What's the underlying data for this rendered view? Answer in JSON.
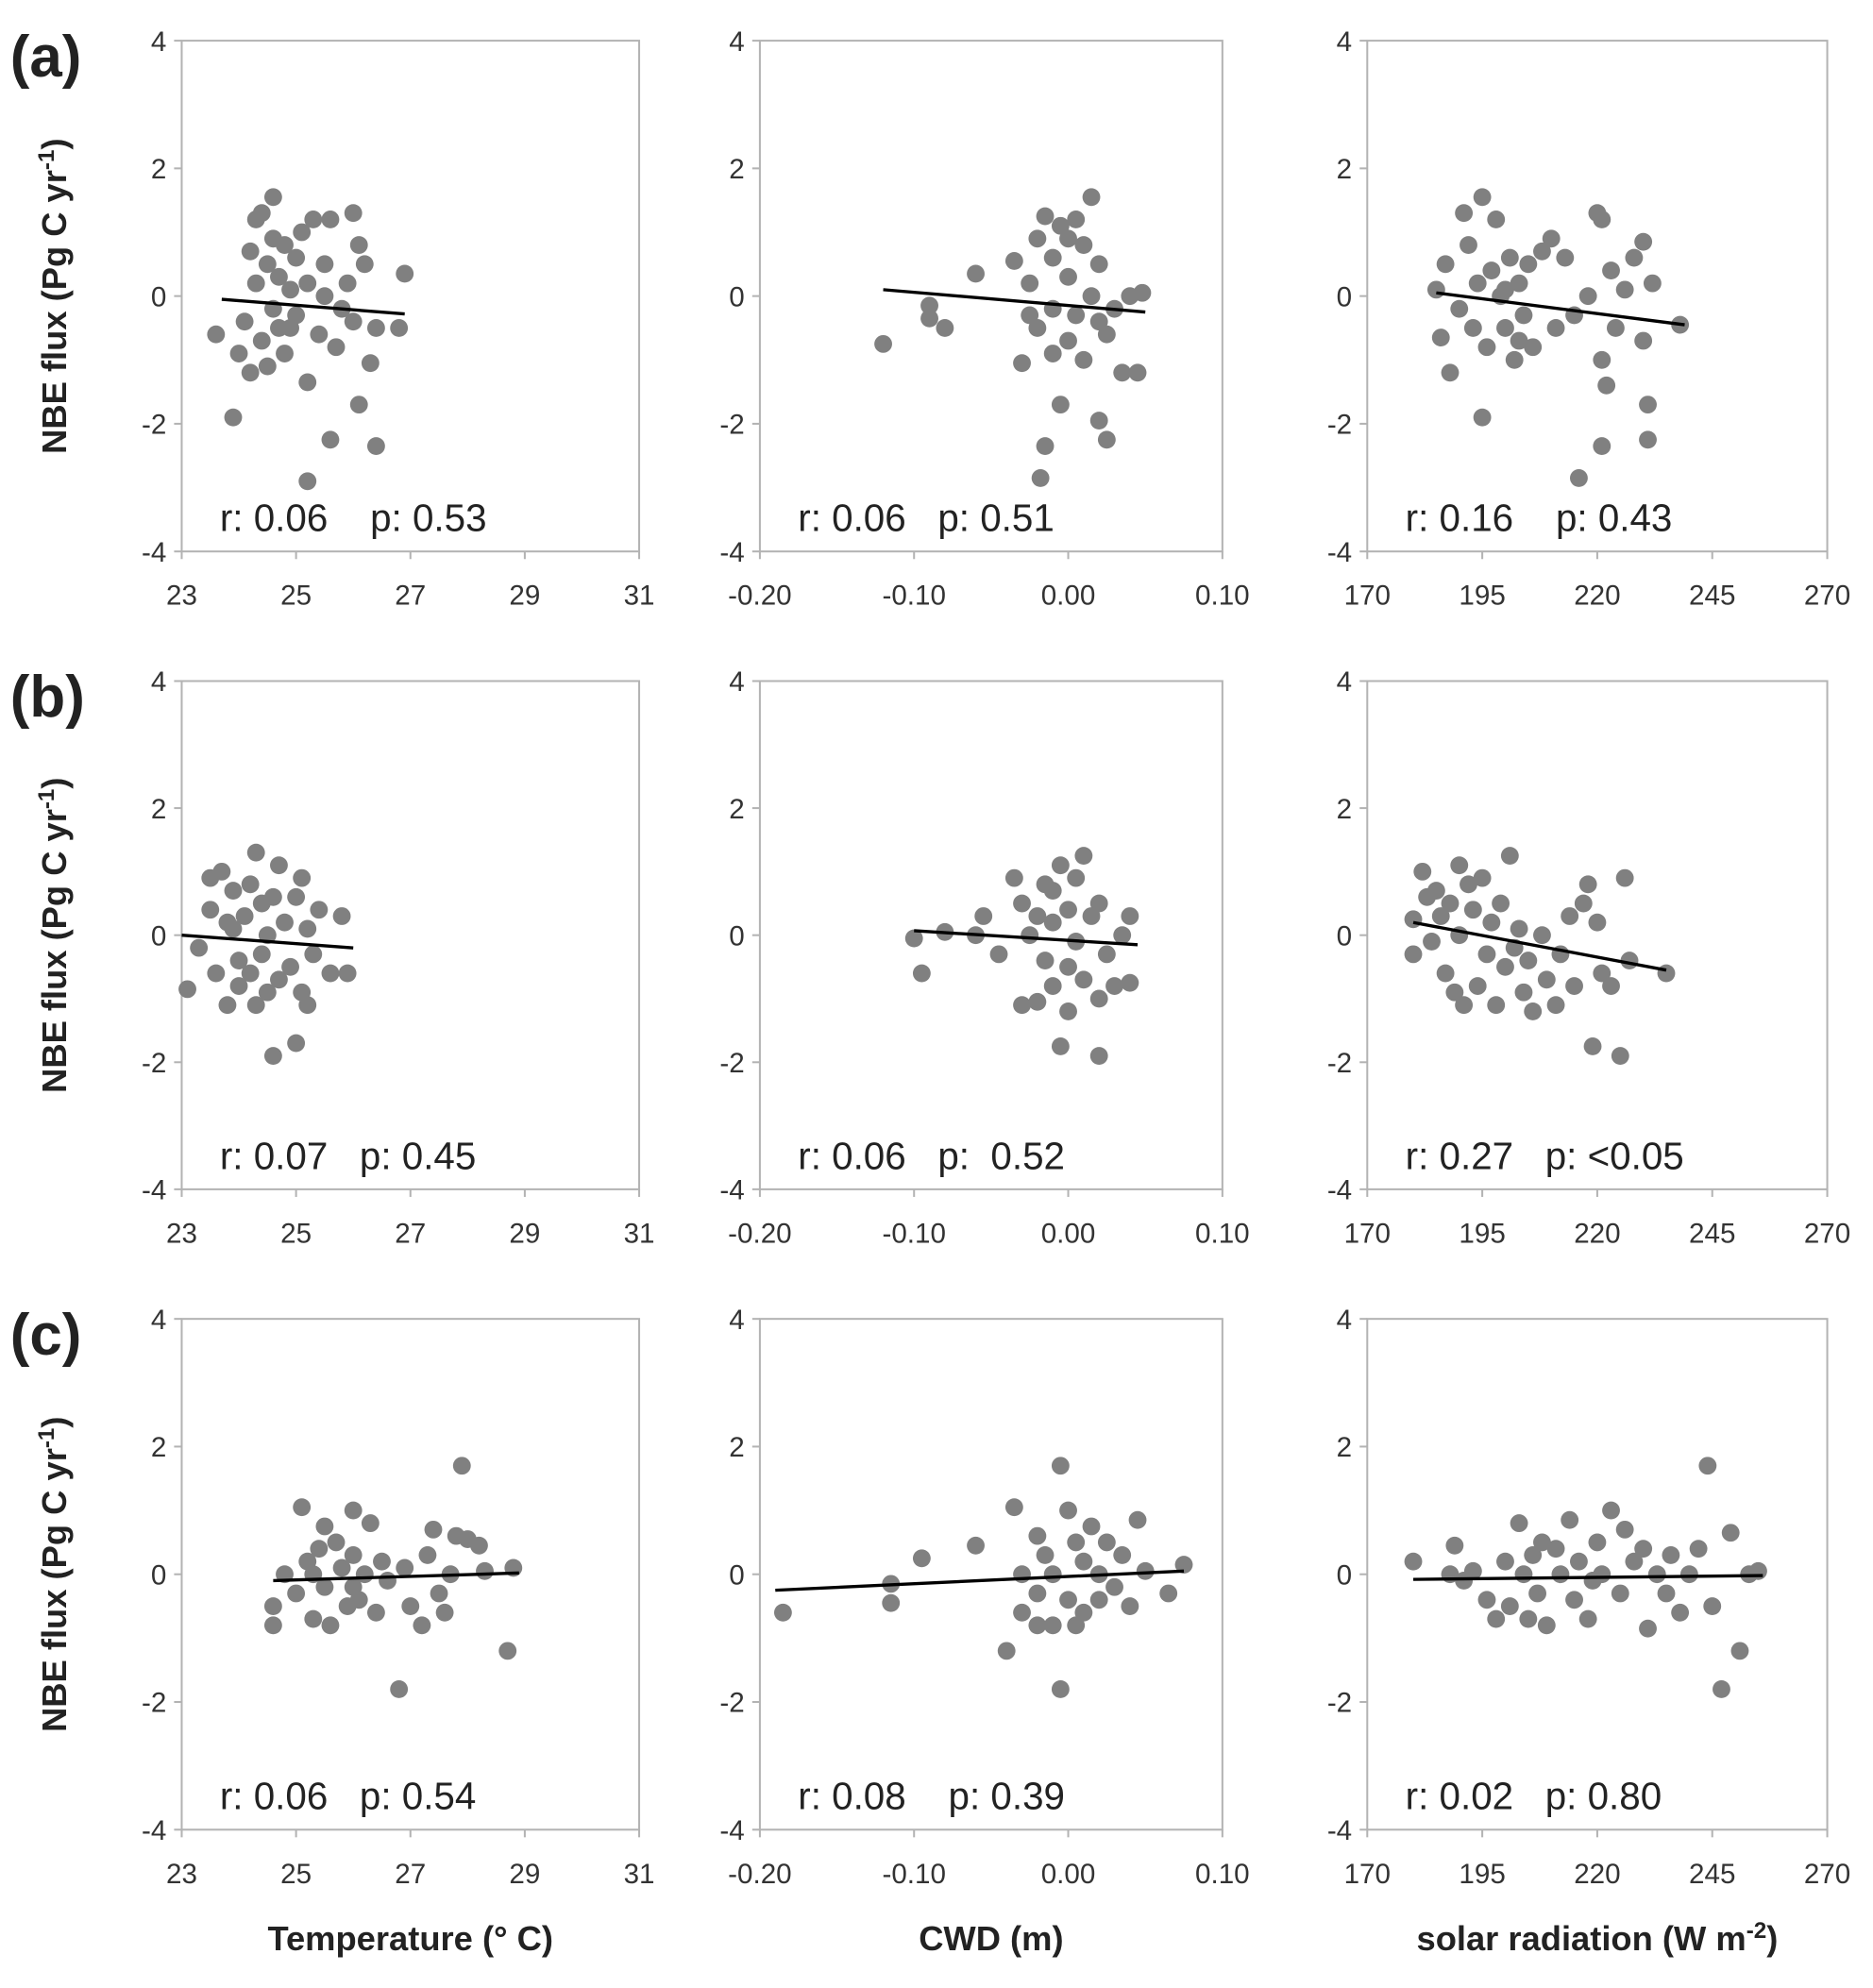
{
  "chart_data": [
    {
      "type": "scatter",
      "panel_label": "(a)",
      "ylabel": [
        {
          "text": "NBE flux (Pg C yr"
        },
        {
          "text": "-1",
          "sup": true
        },
        {
          "text": ")"
        }
      ],
      "annotation": "r: 0.06    p: 0.53",
      "color": "#808080",
      "trend_color": "#000000",
      "x": [
        23.6,
        23.9,
        24.0,
        24.1,
        24.2,
        24.2,
        24.3,
        24.3,
        24.4,
        24.4,
        24.5,
        24.5,
        24.6,
        24.6,
        24.6,
        24.7,
        24.7,
        24.8,
        24.8,
        24.9,
        25.0,
        25.0,
        25.1,
        25.2,
        25.2,
        25.2,
        25.3,
        25.4,
        25.5,
        25.6,
        25.6,
        25.7,
        25.8,
        25.9,
        26.0,
        26.0,
        26.1,
        26.2,
        26.1,
        26.3,
        26.4,
        26.4,
        26.9,
        26.8,
        25.5,
        24.9
      ],
      "y": [
        -0.6,
        -1.9,
        -0.9,
        -0.4,
        0.7,
        -1.2,
        1.2,
        0.2,
        1.3,
        -0.7,
        0.5,
        -1.1,
        1.55,
        0.9,
        -0.2,
        0.3,
        -0.5,
        0.8,
        -0.9,
        0.1,
        -0.3,
        0.6,
        1.0,
        -1.35,
        0.2,
        -2.9,
        1.2,
        -0.6,
        0.5,
        -2.25,
        1.2,
        -0.8,
        -0.2,
        0.2,
        -0.4,
        1.3,
        0.8,
        0.5,
        -1.7,
        -1.05,
        -2.35,
        -0.5,
        0.35,
        -0.5,
        0.0,
        -0.5
      ],
      "trend": {
        "x": [
          23.7,
          26.9
        ],
        "y": [
          -0.05,
          -0.28
        ]
      },
      "xlim": [
        23,
        31
      ],
      "xticks": [
        23,
        25,
        27,
        29,
        31
      ],
      "ylim": [
        -4,
        4
      ],
      "yticks": [
        -4,
        -2,
        0,
        2,
        4
      ]
    },
    {
      "type": "scatter",
      "annotation": "r: 0.06   p: 0.51",
      "color": "#808080",
      "trend_color": "#000000",
      "x": [
        -0.12,
        -0.09,
        -0.09,
        -0.08,
        -0.06,
        -0.035,
        -0.03,
        -0.025,
        -0.02,
        -0.02,
        -0.015,
        -0.015,
        -0.018,
        -0.01,
        -0.01,
        -0.005,
        -0.005,
        0.0,
        0.0,
        0.005,
        0.005,
        0.01,
        0.01,
        0.015,
        0.015,
        0.02,
        0.02,
        0.025,
        0.025,
        0.03,
        0.035,
        0.04,
        0.045,
        0.048,
        -0.025,
        -0.01,
        0.0,
        0.02
      ],
      "y": [
        -0.75,
        -0.15,
        -0.35,
        -0.5,
        0.35,
        0.55,
        -1.05,
        0.2,
        0.9,
        -0.5,
        1.25,
        -2.35,
        -2.85,
        0.6,
        -0.2,
        1.1,
        -1.7,
        0.3,
        -0.7,
        1.2,
        -0.3,
        0.8,
        -1.0,
        1.55,
        0.0,
        -1.95,
        0.5,
        -0.6,
        -2.25,
        -0.2,
        -1.2,
        0.0,
        -1.2,
        0.05,
        -0.3,
        -0.9,
        0.9,
        -0.4
      ],
      "trend": {
        "x": [
          -0.12,
          0.05
        ],
        "y": [
          0.1,
          -0.25
        ]
      },
      "xlim": [
        -0.2,
        0.1
      ],
      "xticks": [
        {
          "value": -0.2,
          "label": "-0.20"
        },
        {
          "value": -0.1,
          "label": "-0.10"
        },
        {
          "value": 0,
          "label": "0.00"
        },
        {
          "value": 0.1,
          "label": "0.10"
        }
      ],
      "ylim": [
        -4,
        4
      ],
      "yticks": [
        -4,
        -2,
        0,
        2,
        4
      ]
    },
    {
      "type": "scatter",
      "annotation": "r: 0.16    p: 0.43",
      "color": "#808080",
      "trend_color": "#000000",
      "x": [
        185,
        186,
        187,
        188,
        190,
        191,
        192,
        193,
        194,
        195,
        195,
        196,
        197,
        198,
        199,
        200,
        201,
        202,
        203,
        204,
        205,
        206,
        208,
        210,
        211,
        213,
        215,
        216,
        218,
        220,
        221,
        221,
        222,
        221,
        223,
        224,
        226,
        228,
        230,
        230,
        231,
        231,
        232,
        238,
        200,
        203
      ],
      "y": [
        0.1,
        -0.65,
        0.5,
        -1.2,
        -0.2,
        1.3,
        0.8,
        -0.5,
        0.2,
        1.55,
        -1.9,
        -0.8,
        0.4,
        1.2,
        0.0,
        -0.5,
        0.6,
        -1.0,
        0.2,
        -0.3,
        0.5,
        -0.8,
        0.7,
        0.9,
        -0.5,
        0.6,
        -0.3,
        -2.85,
        0.0,
        1.3,
        1.2,
        -1.0,
        -1.4,
        -2.35,
        0.4,
        -0.5,
        0.1,
        0.6,
        0.85,
        -0.7,
        -2.25,
        -1.7,
        0.2,
        -0.45,
        0.1,
        -0.7
      ],
      "trend": {
        "x": [
          185,
          239
        ],
        "y": [
          0.05,
          -0.45
        ]
      },
      "xlim": [
        170,
        270
      ],
      "xticks": [
        170,
        195,
        220,
        245,
        270
      ],
      "ylim": [
        -4,
        4
      ],
      "yticks": [
        -4,
        -2,
        0,
        2,
        4
      ]
    },
    {
      "type": "scatter",
      "panel_label": "(b)",
      "ylabel": [
        {
          "text": "NBE flux (Pg C yr"
        },
        {
          "text": "-1",
          "sup": true
        },
        {
          "text": ")"
        }
      ],
      "annotation": "r: 0.07   p: 0.45",
      "color": "#808080",
      "trend_color": "#000000",
      "x": [
        23.1,
        23.3,
        23.5,
        23.5,
        23.6,
        23.7,
        23.8,
        23.8,
        23.9,
        24.0,
        24.0,
        24.1,
        24.2,
        24.2,
        24.3,
        24.3,
        24.4,
        24.4,
        24.5,
        24.6,
        24.6,
        24.7,
        24.7,
        24.8,
        24.9,
        25.0,
        25.0,
        25.1,
        25.1,
        25.2,
        25.2,
        25.3,
        25.4,
        25.6,
        25.8,
        25.9,
        24.5,
        23.9
      ],
      "y": [
        -0.85,
        -0.2,
        0.4,
        0.9,
        -0.6,
        1.0,
        -1.1,
        0.2,
        0.7,
        -0.4,
        -0.8,
        0.3,
        0.8,
        -0.6,
        1.3,
        -1.1,
        0.5,
        -0.3,
        0.0,
        -1.9,
        0.6,
        -0.7,
        1.1,
        0.2,
        -0.5,
        -1.7,
        0.6,
        -0.9,
        0.9,
        -1.1,
        0.1,
        -0.3,
        0.4,
        -0.6,
        0.3,
        -0.6,
        -0.9,
        0.1
      ],
      "trend": {
        "x": [
          23.0,
          26.0
        ],
        "y": [
          0.0,
          -0.2
        ]
      },
      "xlim": [
        23,
        31
      ],
      "xticks": [
        23,
        25,
        27,
        29,
        31
      ],
      "ylim": [
        -4,
        4
      ],
      "yticks": [
        -4,
        -2,
        0,
        2,
        4
      ]
    },
    {
      "type": "scatter",
      "annotation": "r: 0.06   p:  0.52",
      "color": "#808080",
      "trend_color": "#000000",
      "x": [
        -0.1,
        -0.095,
        -0.08,
        -0.06,
        -0.055,
        -0.045,
        -0.035,
        -0.03,
        -0.03,
        -0.025,
        -0.02,
        -0.015,
        -0.015,
        -0.01,
        -0.01,
        -0.005,
        -0.005,
        0.0,
        0.0,
        0.005,
        0.005,
        0.01,
        0.01,
        0.015,
        0.02,
        0.02,
        0.02,
        0.025,
        0.03,
        0.035,
        0.04,
        0.04,
        -0.02,
        0.0,
        -0.01
      ],
      "y": [
        -0.05,
        -0.6,
        0.05,
        0.0,
        0.3,
        -0.3,
        0.9,
        -1.1,
        0.5,
        0.0,
        -1.05,
        0.8,
        -0.4,
        0.2,
        -0.8,
        1.1,
        -1.75,
        0.4,
        -0.5,
        0.9,
        -0.1,
        1.25,
        -0.7,
        0.3,
        -1.0,
        -1.9,
        0.5,
        -0.3,
        -0.8,
        0.0,
        -0.75,
        0.3,
        0.3,
        -1.2,
        0.7
      ],
      "trend": {
        "x": [
          -0.1,
          0.045
        ],
        "y": [
          0.07,
          -0.15
        ]
      },
      "xlim": [
        -0.2,
        0.1
      ],
      "xticks": [
        {
          "value": -0.2,
          "label": "-0.20"
        },
        {
          "value": -0.1,
          "label": "-0.10"
        },
        {
          "value": 0,
          "label": "0.00"
        },
        {
          "value": 0.1,
          "label": "0.10"
        }
      ],
      "ylim": [
        -4,
        4
      ],
      "yticks": [
        -4,
        -2,
        0,
        2,
        4
      ]
    },
    {
      "type": "scatter",
      "annotation": "r: 0.27   p: <0.05",
      "color": "#808080",
      "trend_color": "#000000",
      "x": [
        180,
        180,
        182,
        183,
        184,
        185,
        186,
        187,
        188,
        189,
        190,
        190,
        191,
        192,
        193,
        194,
        195,
        196,
        197,
        198,
        199,
        200,
        201,
        202,
        203,
        204,
        205,
        206,
        208,
        209,
        211,
        212,
        214,
        215,
        217,
        218,
        219,
        220,
        221,
        223,
        225,
        226,
        227,
        235
      ],
      "y": [
        0.25,
        -0.3,
        1.0,
        0.6,
        -0.1,
        0.7,
        0.3,
        -0.6,
        0.5,
        -0.9,
        1.1,
        0.0,
        -1.1,
        0.8,
        0.4,
        -0.8,
        0.9,
        -0.3,
        0.2,
        -1.1,
        0.5,
        -0.5,
        1.25,
        -0.2,
        0.1,
        -0.9,
        -0.4,
        -1.2,
        0.0,
        -0.7,
        -1.1,
        -0.3,
        0.3,
        -0.8,
        0.5,
        0.8,
        -1.75,
        0.2,
        -0.6,
        -0.8,
        -1.9,
        0.9,
        -0.4,
        -0.6
      ],
      "trend": {
        "x": [
          180,
          235
        ],
        "y": [
          0.2,
          -0.55
        ]
      },
      "xlim": [
        170,
        270
      ],
      "xticks": [
        170,
        195,
        220,
        245,
        270
      ],
      "ylim": [
        -4,
        4
      ],
      "yticks": [
        -4,
        -2,
        0,
        2,
        4
      ]
    },
    {
      "type": "scatter",
      "panel_label": "(c)",
      "ylabel": [
        {
          "text": "NBE flux (Pg C yr"
        },
        {
          "text": "-1",
          "sup": true
        },
        {
          "text": ")"
        }
      ],
      "xlabel": [
        {
          "text": "Temperature (° C)"
        }
      ],
      "annotation": "r: 0.06   p: 0.54",
      "color": "#808080",
      "trend_color": "#000000",
      "x": [
        24.6,
        24.6,
        24.8,
        25.0,
        25.1,
        25.2,
        25.3,
        25.4,
        25.5,
        25.5,
        25.6,
        25.7,
        25.8,
        25.9,
        26.0,
        26.0,
        26.1,
        26.2,
        26.3,
        26.4,
        26.5,
        26.6,
        26.8,
        26.9,
        27.0,
        27.2,
        27.3,
        27.4,
        27.5,
        27.6,
        27.7,
        27.9,
        27.8,
        28.0,
        28.2,
        28.3,
        28.7,
        28.8,
        26.0,
        25.3
      ],
      "y": [
        -0.5,
        -0.8,
        0.0,
        -0.3,
        1.05,
        0.2,
        -0.7,
        0.4,
        -0.2,
        0.75,
        -0.8,
        0.5,
        0.1,
        -0.5,
        1.0,
        0.3,
        -0.4,
        0.0,
        0.8,
        -0.6,
        0.2,
        -0.1,
        -1.8,
        0.1,
        -0.5,
        -0.8,
        0.3,
        0.7,
        -0.3,
        -0.6,
        0.0,
        1.7,
        0.6,
        0.55,
        0.45,
        0.05,
        -1.2,
        0.1,
        -0.2,
        0.0
      ],
      "trend": {
        "x": [
          24.6,
          28.9
        ],
        "y": [
          -0.1,
          0.02
        ]
      },
      "xlim": [
        23,
        31
      ],
      "xticks": [
        23,
        25,
        27,
        29,
        31
      ],
      "ylim": [
        -4,
        4
      ],
      "yticks": [
        -4,
        -2,
        0,
        2,
        4
      ]
    },
    {
      "type": "scatter",
      "xlabel": [
        {
          "text": "CWD (m)"
        }
      ],
      "annotation": "r: 0.08    p: 0.39",
      "color": "#808080",
      "trend_color": "#000000",
      "x": [
        -0.185,
        -0.115,
        -0.115,
        -0.095,
        -0.06,
        -0.04,
        -0.035,
        -0.03,
        -0.03,
        -0.02,
        -0.02,
        -0.015,
        -0.01,
        -0.01,
        -0.005,
        -0.005,
        0.0,
        0.0,
        0.005,
        0.005,
        0.01,
        0.015,
        0.02,
        0.02,
        0.025,
        0.03,
        0.035,
        0.04,
        0.045,
        0.05,
        0.065,
        0.075,
        -0.02,
        0.01
      ],
      "y": [
        -0.6,
        -0.15,
        -0.45,
        0.25,
        0.45,
        -1.2,
        1.05,
        0.0,
        -0.6,
        0.6,
        -0.3,
        0.3,
        -0.8,
        0.0,
        -1.8,
        1.7,
        1.0,
        -0.4,
        0.5,
        -0.8,
        0.2,
        0.75,
        -0.4,
        0.0,
        0.5,
        -0.2,
        0.3,
        -0.5,
        0.85,
        0.05,
        -0.3,
        0.15,
        -0.8,
        -0.6
      ],
      "trend": {
        "x": [
          -0.19,
          0.075
        ],
        "y": [
          -0.25,
          0.05
        ]
      },
      "xlim": [
        -0.2,
        0.1
      ],
      "xticks": [
        {
          "value": -0.2,
          "label": "-0.20"
        },
        {
          "value": -0.1,
          "label": "-0.10"
        },
        {
          "value": 0,
          "label": "0.00"
        },
        {
          "value": 0.1,
          "label": "0.10"
        }
      ],
      "ylim": [
        -4,
        4
      ],
      "yticks": [
        -4,
        -2,
        0,
        2,
        4
      ]
    },
    {
      "type": "scatter",
      "xlabel": [
        {
          "text": "solar radiation (W m"
        },
        {
          "text": "-2",
          "sup": true
        },
        {
          "text": ")"
        }
      ],
      "annotation": "r: 0.02   p: 0.80",
      "color": "#808080",
      "trend_color": "#000000",
      "x": [
        180,
        188,
        189,
        191,
        193,
        196,
        198,
        200,
        201,
        203,
        204,
        205,
        206,
        207,
        208,
        209,
        211,
        212,
        214,
        215,
        216,
        218,
        220,
        221,
        223,
        225,
        226,
        228,
        230,
        231,
        233,
        235,
        236,
        238,
        240,
        242,
        244,
        245,
        247,
        249,
        251,
        253,
        255,
        219
      ],
      "y": [
        0.2,
        0.0,
        0.45,
        -0.1,
        0.05,
        -0.4,
        -0.7,
        0.2,
        -0.5,
        0.8,
        0.0,
        -0.7,
        0.3,
        -0.3,
        0.5,
        -0.8,
        0.4,
        0.0,
        0.85,
        -0.4,
        0.2,
        -0.7,
        0.5,
        0.0,
        1.0,
        -0.3,
        0.7,
        0.2,
        0.4,
        -0.85,
        0.0,
        -0.3,
        0.3,
        -0.6,
        0.0,
        0.4,
        1.7,
        -0.5,
        -1.8,
        0.65,
        -1.2,
        0.0,
        0.05,
        -0.1
      ],
      "trend": {
        "x": [
          180,
          256
        ],
        "y": [
          -0.08,
          -0.02
        ]
      },
      "xlim": [
        170,
        270
      ],
      "xticks": [
        170,
        195,
        220,
        245,
        270
      ],
      "ylim": [
        -4,
        4
      ],
      "yticks": [
        -4,
        -2,
        0,
        2,
        4
      ]
    }
  ]
}
